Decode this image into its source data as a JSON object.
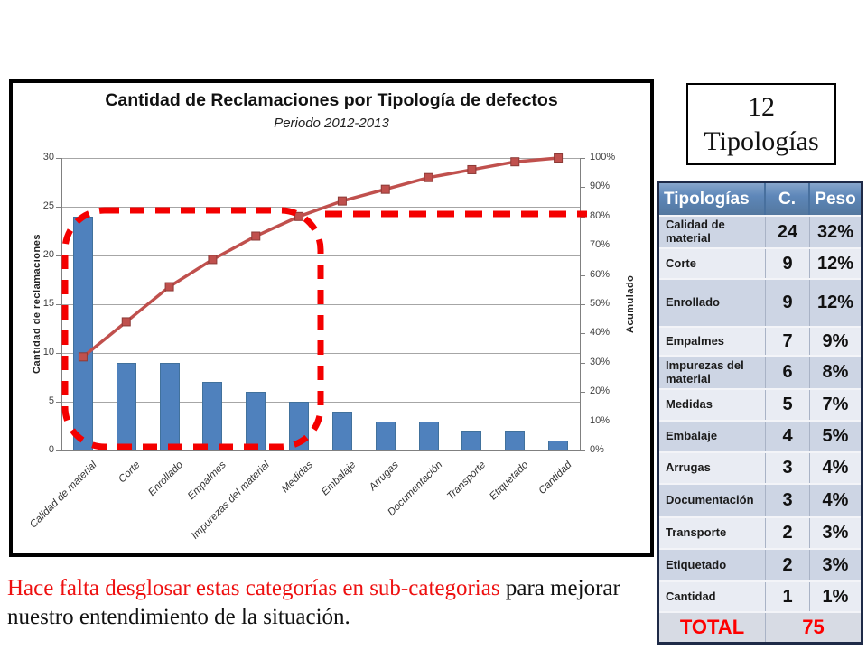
{
  "chart_data": {
    "type": "pareto-bar-line",
    "title": "Cantidad de Reclamaciones por Tipología de defectos",
    "subtitle": "Periodo 2012-2013",
    "categories": [
      "Calidad de material",
      "Corte",
      "Enrollado",
      "Empalmes",
      "Impurezas del material",
      "Medidas",
      "Embalaje",
      "Arrugas",
      "Documentación",
      "Transporte",
      "Etiquetado",
      "Cantidad"
    ],
    "bar_values": [
      24,
      9,
      9,
      7,
      6,
      5,
      4,
      3,
      3,
      2,
      2,
      1
    ],
    "cumulative_pct": [
      32,
      44,
      56,
      65.3,
      73.3,
      80,
      85.3,
      89.3,
      93.3,
      96,
      98.7,
      100
    ],
    "y_left": {
      "label": "Cantidad de reclamaciones",
      "min": 0,
      "max": 30,
      "step": 5
    },
    "y_right": {
      "label": "Acumulado",
      "min": 0,
      "max": 100,
      "step": 10,
      "suffix": "%"
    },
    "legend": "none",
    "grid": "horizontal",
    "highlight": {
      "dashed_box_around_categories": [
        "Calidad de material",
        "Corte",
        "Enrollado",
        "Empalmes",
        "Impurezas del material",
        "Medidas"
      ],
      "dashed_line_at_pct": 80
    }
  },
  "callout": {
    "line1": "12",
    "line2": "Tipologías"
  },
  "table": {
    "headers": [
      "Tipologías",
      "C.",
      "Peso"
    ],
    "rows": [
      {
        "label": "Calidad de material",
        "c": "24",
        "peso": "32%"
      },
      {
        "label": "Corte",
        "c": "9",
        "peso": "12%"
      },
      {
        "label": "Enrollado",
        "c": "9",
        "peso": "12%"
      },
      {
        "label": "Empalmes",
        "c": "7",
        "peso": "9%"
      },
      {
        "label": "Impurezas del material",
        "c": "6",
        "peso": "8%"
      },
      {
        "label": "Medidas",
        "c": "5",
        "peso": "7%"
      },
      {
        "label": "Embalaje",
        "c": "4",
        "peso": "5%"
      },
      {
        "label": "Arrugas",
        "c": "3",
        "peso": "4%"
      },
      {
        "label": "Documentación",
        "c": "3",
        "peso": "4%"
      },
      {
        "label": "Transporte",
        "c": "2",
        "peso": "3%"
      },
      {
        "label": "Etiquetado",
        "c": "2",
        "peso": "3%"
      },
      {
        "label": "Cantidad",
        "c": "1",
        "peso": "1%"
      }
    ],
    "total_label": "TOTAL",
    "total_value": "75"
  },
  "annotation": {
    "red_text": "Hace falta desglosar estas categorías en sub-categorias",
    "black_text": " para mejorar nuestro entendimiento de la situación."
  },
  "colors": {
    "bar_blue": "#4f81bd",
    "line_red": "#c0504d",
    "marker_border": "#8c3a36",
    "dashed_red": "#f40000",
    "band_dark": "#cdd5e4",
    "band_light": "#e9ecf3",
    "header_blue": "#5e87b9",
    "total_red": "#fe0000",
    "annotation_red": "#ee1111"
  }
}
